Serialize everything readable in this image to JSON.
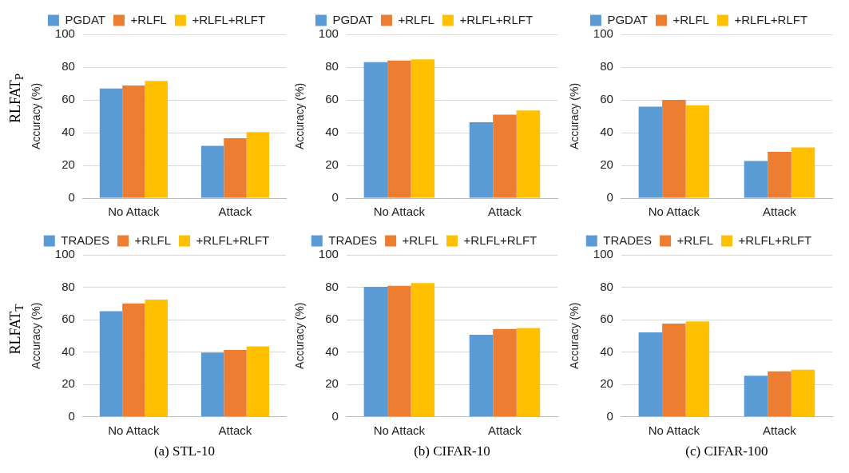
{
  "chart_data": [
    {
      "type": "bar",
      "ylabel": "Accuracy (%)",
      "annotations": [
        "RLFAT$_{P}$"
      ],
      "categories": [
        "No Attack",
        "Attack"
      ],
      "ylim": [
        0,
        100
      ],
      "yticks": [
        0,
        20,
        40,
        60,
        80,
        100
      ],
      "grid": "y",
      "legend": "top",
      "series": [
        {
          "name": "PGDAT",
          "color": "#5b9bd5",
          "values": [
            67,
            32
          ]
        },
        {
          "name": "+RLFL",
          "color": "#ed7d31",
          "values": [
            68.8,
            36.6
          ]
        },
        {
          "name": "+RLFL+RLFT",
          "color": "#ffc000",
          "values": [
            71.6,
            40.4
          ]
        }
      ]
    },
    {
      "type": "bar",
      "ylabel": "Accuracy (%)",
      "categories": [
        "No Attack",
        "Attack"
      ],
      "ylim": [
        0,
        100
      ],
      "yticks": [
        0,
        20,
        40,
        60,
        80,
        100
      ],
      "grid": "y",
      "legend": "top",
      "series": [
        {
          "name": "PGDAT",
          "color": "#5b9bd5",
          "values": [
            83,
            46.4
          ]
        },
        {
          "name": "+RLFL",
          "color": "#ed7d31",
          "values": [
            84,
            51
          ]
        },
        {
          "name": "+RLFL+RLFT",
          "color": "#ffc000",
          "values": [
            84.8,
            53.5
          ]
        }
      ]
    },
    {
      "type": "bar",
      "ylabel": "Accuracy (%)",
      "categories": [
        "No Attack",
        "Attack"
      ],
      "ylim": [
        0,
        100
      ],
      "yticks": [
        0,
        20,
        40,
        60,
        80,
        100
      ],
      "grid": "y",
      "legend": "top",
      "series": [
        {
          "name": "PGDAT",
          "color": "#5b9bd5",
          "values": [
            55.9,
            22.7
          ]
        },
        {
          "name": "+RLFL",
          "color": "#ed7d31",
          "values": [
            60,
            28.3
          ]
        },
        {
          "name": "+RLFL+RLFT",
          "color": "#ffc000",
          "values": [
            56.7,
            31
          ]
        }
      ]
    },
    {
      "type": "bar",
      "ylabel": "Accuracy (%)",
      "xlabel": "(a) STL-10",
      "annotations": [
        "RLFAT$_{T}$"
      ],
      "categories": [
        "No Attack",
        "Attack"
      ],
      "ylim": [
        0,
        100
      ],
      "yticks": [
        0,
        20,
        40,
        60,
        80,
        100
      ],
      "grid": "y",
      "legend": "top",
      "series": [
        {
          "name": "TRADES",
          "color": "#5b9bd5",
          "values": [
            65.2,
            39.6
          ]
        },
        {
          "name": "+RLFL",
          "color": "#ed7d31",
          "values": [
            70,
            41.3
          ]
        },
        {
          "name": "+RLFL+RLFT",
          "color": "#ffc000",
          "values": [
            72.3,
            43.5
          ]
        }
      ]
    },
    {
      "type": "bar",
      "ylabel": "Accuracy (%)",
      "xlabel": "(b) CIFAR-10",
      "categories": [
        "No Attack",
        "Attack"
      ],
      "ylim": [
        0,
        100
      ],
      "yticks": [
        0,
        20,
        40,
        60,
        80,
        100
      ],
      "grid": "y",
      "legend": "top",
      "series": [
        {
          "name": "TRADES",
          "color": "#5b9bd5",
          "values": [
            80.2,
            50.6
          ]
        },
        {
          "name": "+RLFL",
          "color": "#ed7d31",
          "values": [
            80.9,
            54.2
          ]
        },
        {
          "name": "+RLFL+RLFT",
          "color": "#ffc000",
          "values": [
            82.6,
            54.8
          ]
        }
      ]
    },
    {
      "type": "bar",
      "ylabel": "Accuracy (%)",
      "xlabel": "(c) CIFAR-100",
      "categories": [
        "No Attack",
        "Attack"
      ],
      "ylim": [
        0,
        100
      ],
      "yticks": [
        0,
        20,
        40,
        60,
        80,
        100
      ],
      "grid": "y",
      "legend": "top",
      "series": [
        {
          "name": "TRADES",
          "color": "#5b9bd5",
          "values": [
            52.1,
            25.4
          ]
        },
        {
          "name": "+RLFL",
          "color": "#ed7d31",
          "values": [
            57.6,
            28
          ]
        },
        {
          "name": "+RLFL+RLFT",
          "color": "#ffc000",
          "values": [
            58.9,
            29
          ]
        }
      ]
    }
  ]
}
